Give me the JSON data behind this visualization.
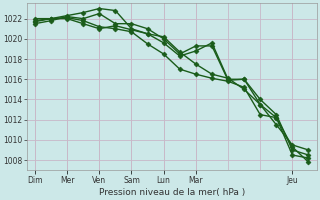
{
  "xlabel": "Pression niveau de la mer( hPa )",
  "background_color": "#cce8e8",
  "grid_color": "#c8b8c8",
  "line_color": "#1a5c1a",
  "ylim": [
    1007.0,
    1023.5
  ],
  "yticks": [
    1008,
    1010,
    1012,
    1014,
    1016,
    1018,
    1020,
    1022
  ],
  "x_tick_labels": [
    "Dim",
    "Mer",
    "Ven",
    "Sam",
    "Lun",
    "Mar",
    "Jeu"
  ],
  "x_tick_positions": [
    0,
    2,
    4,
    6,
    8,
    10,
    16
  ],
  "series": [
    [
      1021.5,
      1021.8,
      1022.2,
      1022.0,
      1022.5,
      1021.5,
      1021.5,
      1021.0,
      1020.0,
      1018.5,
      1019.3,
      1019.3,
      1015.9,
      1016.0,
      1013.5,
      1012.2,
      1008.5,
      1008.2
    ],
    [
      1021.8,
      1022.0,
      1022.0,
      1021.5,
      1021.0,
      1021.3,
      1020.9,
      1020.5,
      1019.6,
      1018.3,
      1018.8,
      1019.6,
      1016.0,
      1016.0,
      1014.0,
      1012.5,
      1009.0,
      1008.5
    ],
    [
      1022.0,
      1022.0,
      1022.1,
      1021.8,
      1021.2,
      1021.0,
      1020.7,
      1019.5,
      1018.5,
      1017.0,
      1016.5,
      1016.1,
      1015.8,
      1015.2,
      1012.5,
      1012.2,
      1009.3,
      1007.8
    ],
    [
      1021.7,
      1022.0,
      1022.3,
      1022.6,
      1023.0,
      1022.8,
      1021.0,
      1020.5,
      1020.2,
      1018.7,
      1017.5,
      1016.5,
      1016.1,
      1015.0,
      1013.5,
      1011.5,
      1009.5,
      1009.0
    ]
  ],
  "marker": "D",
  "marker_size": 2.5,
  "line_width": 1.0,
  "tick_fontsize": 5.5,
  "xlabel_fontsize": 6.5
}
